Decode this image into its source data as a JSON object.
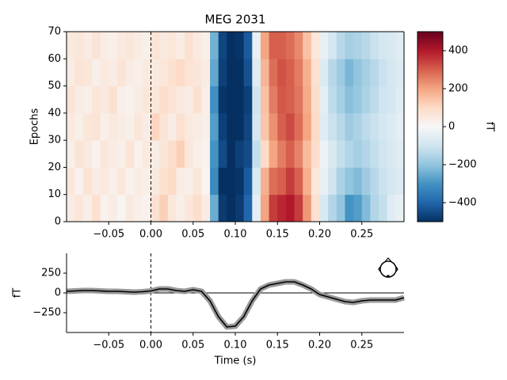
{
  "chart_data": [
    {
      "type": "heatmap",
      "title": "MEG 2031",
      "ylabel": "Epochs",
      "xbins": [
        -0.1,
        -0.09,
        -0.08,
        -0.07,
        -0.06,
        -0.05,
        -0.04,
        -0.03,
        -0.02,
        -0.01,
        0,
        0.01,
        0.02,
        0.03,
        0.04,
        0.05,
        0.06,
        0.07,
        0.08,
        0.09,
        0.1,
        0.11,
        0.12,
        0.13,
        0.14,
        0.15,
        0.16,
        0.17,
        0.18,
        0.19,
        0.2,
        0.21,
        0.22,
        0.23,
        0.24,
        0.25,
        0.26,
        0.27,
        0.28,
        0.29,
        0.3
      ],
      "ybins": [
        0,
        10,
        20,
        30,
        40,
        50,
        60,
        70
      ],
      "values": [
        [
          40,
          60,
          30,
          80,
          20,
          40,
          10,
          50,
          30,
          20,
          80,
          120,
          60,
          30,
          60,
          90,
          40,
          -250,
          -480,
          -500,
          -480,
          -400,
          -50,
          200,
          350,
          380,
          400,
          350,
          220,
          80,
          -80,
          -150,
          -200,
          -300,
          -280,
          -220,
          -150,
          -120,
          -60,
          -40
        ],
        [
          60,
          20,
          70,
          40,
          50,
          30,
          60,
          20,
          40,
          30,
          50,
          80,
          100,
          40,
          30,
          60,
          10,
          -320,
          -500,
          -500,
          -490,
          -420,
          -80,
          180,
          280,
          300,
          350,
          300,
          180,
          60,
          -40,
          -100,
          -160,
          -200,
          -220,
          -180,
          -140,
          -110,
          -90,
          -70
        ],
        [
          30,
          70,
          50,
          20,
          60,
          40,
          30,
          70,
          20,
          50,
          40,
          60,
          90,
          120,
          60,
          30,
          20,
          -300,
          -450,
          -500,
          -470,
          -450,
          -120,
          100,
          200,
          260,
          300,
          250,
          160,
          90,
          -30,
          -80,
          -120,
          -150,
          -170,
          -150,
          -120,
          -100,
          -80,
          -60
        ],
        [
          50,
          30,
          60,
          70,
          30,
          50,
          40,
          30,
          60,
          40,
          110,
          70,
          40,
          80,
          50,
          40,
          30,
          -280,
          -470,
          -500,
          -500,
          -460,
          -90,
          140,
          230,
          300,
          330,
          280,
          200,
          100,
          -60,
          -110,
          -140,
          -180,
          -160,
          -130,
          -110,
          -90,
          -70,
          -50
        ],
        [
          70,
          40,
          30,
          60,
          50,
          80,
          30,
          20,
          40,
          60,
          60,
          90,
          70,
          50,
          40,
          80,
          30,
          -310,
          -490,
          -500,
          -500,
          -470,
          -100,
          150,
          260,
          310,
          300,
          270,
          190,
          90,
          -50,
          -130,
          -170,
          -210,
          -190,
          -160,
          -130,
          -100,
          -90,
          -60
        ],
        [
          40,
          70,
          60,
          30,
          50,
          40,
          70,
          40,
          30,
          50,
          50,
          60,
          80,
          100,
          70,
          60,
          40,
          -260,
          -470,
          -500,
          -500,
          -440,
          -60,
          170,
          280,
          320,
          300,
          260,
          180,
          80,
          -70,
          -140,
          -180,
          -230,
          -200,
          -170,
          -140,
          -110,
          -90,
          -70
        ],
        [
          50,
          60,
          40,
          70,
          40,
          30,
          50,
          60,
          40,
          30,
          70,
          50,
          60,
          40,
          80,
          50,
          30,
          -240,
          -460,
          -500,
          -490,
          -420,
          -40,
          200,
          300,
          300,
          280,
          240,
          150,
          60,
          -40,
          -90,
          -140,
          -170,
          -160,
          -140,
          -110,
          -90,
          -80,
          -60
        ]
      ],
      "xlim": [
        -0.1,
        0.3
      ],
      "ylim": [
        0,
        70
      ],
      "xticks": [
        {
          "value": -0.05,
          "label": "−0.05"
        },
        {
          "value": 0,
          "label": "0.00"
        },
        0.05,
        {
          "value": 0.1,
          "label": "0.10"
        },
        0.15,
        {
          "value": 0.2,
          "label": "0.20"
        },
        0.25
      ],
      "yticks": [
        0,
        10,
        20,
        30,
        40,
        50,
        60,
        70
      ],
      "colormap": [
        "#053061",
        "#2166ac",
        "#4393c3",
        "#92c5de",
        "#d1e5f0",
        "#f7f7f7",
        "#fddbc7",
        "#f4a582",
        "#d6604d",
        "#b2182b",
        "#67001f"
      ],
      "colorbar": {
        "label": "fT",
        "lim": [
          -500,
          500
        ],
        "ticks": [
          {
            "value": -400,
            "label": "−400"
          },
          {
            "value": -200,
            "label": "−200"
          },
          0,
          200,
          400
        ]
      }
    },
    {
      "type": "line",
      "xlabel": "Time (s)",
      "ylabel": "fT",
      "color": "#000000",
      "x": [
        -0.1,
        -0.09,
        -0.08,
        -0.07,
        -0.06,
        -0.05,
        -0.04,
        -0.03,
        -0.02,
        -0.01,
        0,
        0.01,
        0.02,
        0.03,
        0.04,
        0.05,
        0.06,
        0.07,
        0.08,
        0.09,
        0.1,
        0.11,
        0.12,
        0.13,
        0.14,
        0.15,
        0.16,
        0.17,
        0.18,
        0.19,
        0.2,
        0.21,
        0.22,
        0.23,
        0.24,
        0.25,
        0.26,
        0.27,
        0.28,
        0.29,
        0.3
      ],
      "values": [
        20,
        25,
        30,
        30,
        25,
        20,
        20,
        15,
        10,
        15,
        25,
        50,
        50,
        30,
        20,
        40,
        20,
        -100,
        -300,
        -430,
        -420,
        -300,
        -100,
        50,
        100,
        120,
        140,
        140,
        100,
        50,
        -20,
        -50,
        -80,
        -110,
        -120,
        -100,
        -90,
        -90,
        -90,
        -90,
        -60
      ],
      "xlim": [
        -0.1,
        0.3
      ],
      "ylim": [
        -500,
        500
      ],
      "xticks": [
        {
          "value": -0.05,
          "label": "−0.05"
        },
        {
          "value": 0,
          "label": "0.00"
        },
        0.05,
        {
          "value": 0.1,
          "label": "0.10"
        },
        0.15,
        {
          "value": 0.2,
          "label": "0.20"
        },
        0.25
      ],
      "yticks": [
        {
          "value": -250,
          "label": "−250"
        },
        0,
        250
      ]
    }
  ]
}
